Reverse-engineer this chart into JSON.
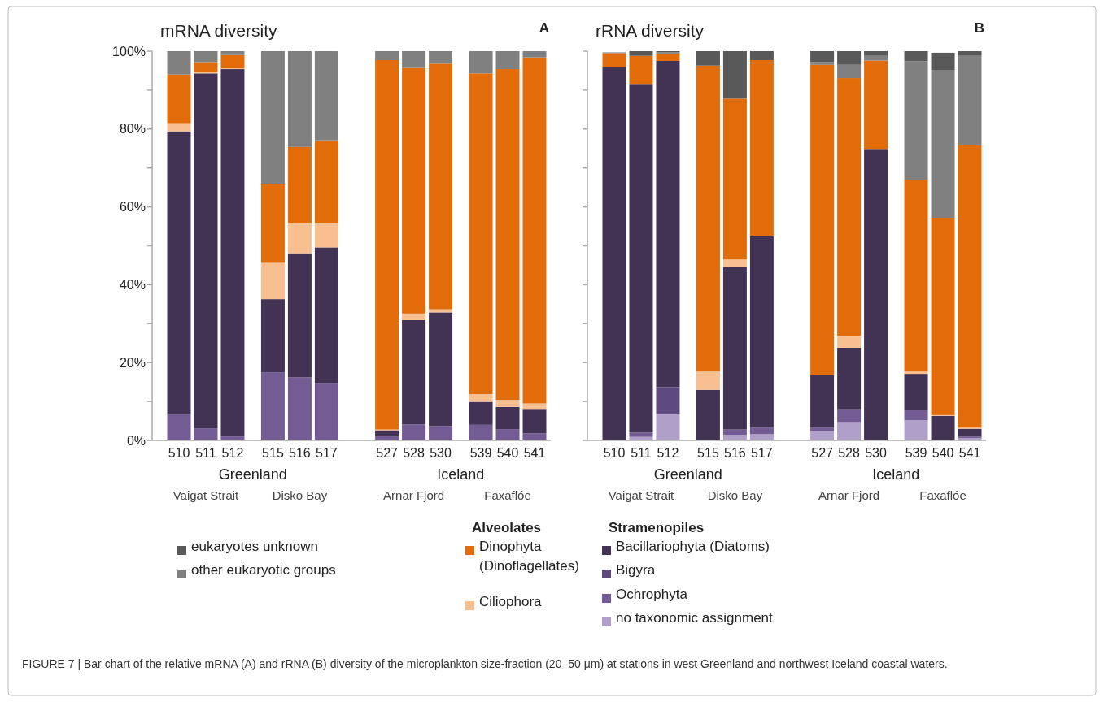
{
  "chart_data": [
    {
      "type": "bar",
      "stacked": true,
      "title": "mRNA diversity",
      "categories": [
        "510",
        "511",
        "512",
        "515",
        "516",
        "517",
        "527",
        "528",
        "530",
        "539",
        "540",
        "541"
      ],
      "series": [
        {
          "name": "no taxonomic assignment",
          "color": "#b09fc8",
          "values": [
            0,
            0,
            0,
            0,
            0,
            0,
            0,
            0,
            0,
            0,
            0,
            0
          ]
        },
        {
          "name": "Ochrophyta",
          "color": "#735b94",
          "values": [
            6.8,
            3.1,
            1.0,
            17.5,
            16.2,
            14.8,
            1.2,
            4.1,
            3.7,
            4.0,
            2.9,
            1.8
          ]
        },
        {
          "name": "Bigyra",
          "color": "#5f4a80",
          "values": [
            0,
            0,
            0,
            0,
            0,
            0,
            0,
            0,
            0,
            0,
            0,
            0
          ]
        },
        {
          "name": "Bacillariophyta (Diatoms)",
          "color": "#423354",
          "values": [
            72.6,
            91.2,
            94.4,
            18.8,
            31.9,
            34.8,
            1.4,
            26.8,
            29.2,
            5.9,
            5.7,
            6.3
          ]
        },
        {
          "name": "Ciliophora",
          "color": "#f8bf90",
          "values": [
            2.1,
            0.3,
            0.2,
            9.3,
            7.8,
            6.3,
            0.2,
            1.7,
            0.8,
            2.0,
            1.8,
            1.4
          ]
        },
        {
          "name": "Dinophyta (Dinoflagellates)",
          "color": "#e36c0a",
          "values": [
            12.5,
            2.6,
            3.4,
            20.2,
            19.5,
            21.2,
            94.9,
            63.1,
            63.1,
            82.4,
            85.0,
            88.9
          ]
        },
        {
          "name": "other eukaryotic groups",
          "color": "#808080",
          "values": [
            6.0,
            2.8,
            1.0,
            34.2,
            24.6,
            22.9,
            2.3,
            4.3,
            3.2,
            5.7,
            4.6,
            1.6
          ]
        },
        {
          "name": "eukaryotes unknown",
          "color": "#595959",
          "values": [
            0,
            0,
            0,
            0,
            0,
            0,
            0,
            0,
            0,
            0,
            0,
            0
          ]
        }
      ],
      "ylim": [
        0,
        100
      ],
      "yticks": [
        {
          "value": 0,
          "label": "0%"
        },
        {
          "value": 10,
          "label": null
        },
        {
          "value": 20,
          "label": "20%"
        },
        {
          "value": 30,
          "label": null
        },
        {
          "value": 40,
          "label": "40%"
        },
        {
          "value": 50,
          "label": null
        },
        {
          "value": 60,
          "label": "60%"
        },
        {
          "value": 70,
          "label": null
        },
        {
          "value": 80,
          "label": "80%"
        },
        {
          "value": 90,
          "label": null
        },
        {
          "value": 100,
          "label": "100%"
        }
      ],
      "legend": "bottom",
      "annotations": [
        "A",
        "Greenland",
        "Iceland",
        "Vaigat Strait",
        "Disko Bay",
        "Arnar Fjord",
        "Faxaflóe",
        "Alveolates",
        "Stramenopiles"
      ]
    },
    {
      "type": "bar",
      "stacked": true,
      "title": "rRNA diversity",
      "categories": [
        "510",
        "511",
        "512",
        "515",
        "516",
        "517",
        "527",
        "528",
        "530",
        "539",
        "540",
        "541"
      ],
      "series": [
        {
          "color": "#b09fc8",
          "values": [
            null,
            0.9,
            6.9,
            0,
            1.4,
            1.6,
            2.4,
            4.7,
            0,
            5.2,
            null,
            0.6
          ]
        },
        {
          "color": "#735b94",
          "values": [
            0,
            1.1,
            0,
            0,
            1.4,
            1.7,
            0.9,
            3.3,
            0,
            2.7,
            0,
            0.4
          ]
        },
        {
          "color": "#5f4a80",
          "values": [
            0,
            0,
            6.8,
            0,
            0,
            0,
            0,
            0,
            0,
            0,
            0,
            0
          ]
        },
        {
          "color": "#423354",
          "values": [
            96.0,
            89.6,
            83.8,
            13.0,
            41.8,
            49.2,
            13.5,
            15.8,
            74.9,
            9.2,
            6.3,
            2.0
          ]
        },
        {
          "color": "#f8bf90",
          "values": [
            0,
            0,
            0,
            4.7,
            1.9,
            0.1,
            0,
            3.1,
            0,
            0.6,
            0.2,
            0.3
          ]
        },
        {
          "color": "#e36c0a",
          "values": [
            3.5,
            7.2,
            1.9,
            78.6,
            41.3,
            45.1,
            79.7,
            66.2,
            22.7,
            49.3,
            50.7,
            72.5
          ]
        },
        {
          "color": "#808080",
          "values": [
            0.2,
            0,
            0.3,
            0,
            0,
            0,
            0.7,
            3.4,
            1.2,
            30.4,
            38.0,
            23.0
          ]
        },
        {
          "color": "#595959",
          "values": [
            0,
            1.2,
            0.3,
            3.7,
            12.2,
            2.3,
            2.8,
            3.5,
            1.2,
            2.6,
            4.4,
            1.2
          ]
        }
      ],
      "ylim": [
        0,
        100
      ],
      "yticks": [
        {
          "value": 0,
          "label": null
        },
        {
          "value": 10,
          "label": null
        },
        {
          "value": 20,
          "label": null
        },
        {
          "value": 30,
          "label": null
        },
        {
          "value": 40,
          "label": null
        },
        {
          "value": 50,
          "label": null
        },
        {
          "value": 60,
          "label": null
        },
        {
          "value": 70,
          "label": null
        },
        {
          "value": 80,
          "label": null
        },
        {
          "value": 90,
          "label": null
        },
        {
          "value": 100,
          "label": null
        }
      ],
      "tick_labels": "x",
      "annotations": [
        "B",
        "Greenland",
        "Iceland",
        "Vaigat Strait",
        "Disko Bay",
        "Arnar Fjord",
        "Faxaflóe",
        "FIGURE 7 | Bar chart of the relative mRNA (A) and rRNA (B) diversity of the microplankton size-fraction (20–50 μm) at stations in west Greenland and northwest Iceland coastal waters."
      ]
    }
  ]
}
